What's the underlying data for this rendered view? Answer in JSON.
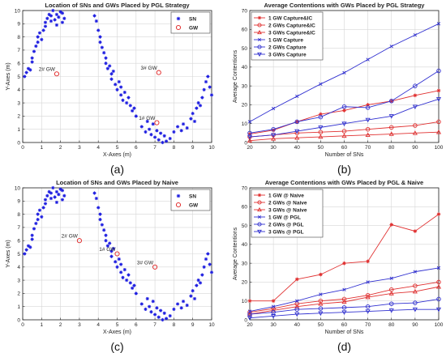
{
  "chart_data": [
    {
      "type": "scatter",
      "title": "Location of SNs and GWs Placed by PGL Strategy",
      "xlabel": "X-Axes (m)",
      "ylabel": "Y-Axes (m)",
      "xlim": [
        0,
        10
      ],
      "ylim": [
        0,
        10
      ],
      "xticks": [
        "0",
        "1",
        "2",
        "3",
        "4",
        "5",
        "6",
        "7",
        "8",
        "9",
        "10"
      ],
      "yticks": [
        "0",
        "1",
        "2",
        "3",
        "4",
        "5",
        "6",
        "7",
        "8",
        "9",
        "10"
      ],
      "grid": true,
      "legend": "top-right",
      "caption": "(a)",
      "series": [
        {
          "name": "SN",
          "marker": "star",
          "color": "#1f1fe0",
          "x": [
            0.1,
            0.2,
            0.3,
            0.4,
            0.5,
            0.5,
            0.6,
            0.7,
            0.8,
            0.8,
            0.9,
            1.0,
            1.1,
            1.2,
            1.2,
            1.3,
            1.4,
            1.5,
            1.5,
            1.6,
            1.7,
            1.8,
            1.8,
            1.9,
            2.0,
            2.1,
            2.1,
            2.2,
            3.8,
            3.9,
            4.0,
            4.1,
            4.1,
            4.2,
            4.3,
            4.4,
            4.4,
            4.5,
            4.6,
            4.7,
            4.7,
            4.8,
            4.9,
            5.0,
            5.1,
            5.2,
            5.2,
            5.3,
            5.4,
            5.5,
            5.6,
            5.7,
            5.8,
            5.9,
            6.0,
            6.3,
            6.5,
            6.6,
            6.7,
            6.8,
            6.9,
            7.0,
            7.1,
            7.2,
            7.3,
            7.4,
            7.5,
            7.6,
            7.8,
            8.0,
            8.2,
            8.4,
            8.5,
            8.7,
            8.9,
            9.0,
            9.1,
            9.2,
            9.3,
            9.4,
            9.5,
            9.6,
            9.7,
            9.8,
            9.9,
            10.0
          ],
          "y": [
            5.0,
            5.3,
            5.6,
            5.5,
            6.1,
            6.4,
            6.9,
            7.3,
            7.6,
            8.0,
            8.3,
            7.8,
            8.5,
            8.8,
            9.1,
            9.4,
            9.7,
            9.2,
            9.6,
            10.0,
            9.3,
            9.7,
            8.9,
            9.5,
            9.9,
            9.1,
            9.8,
            9.4,
            9.6,
            9.2,
            8.5,
            8.0,
            7.6,
            7.2,
            6.8,
            6.4,
            6.0,
            5.6,
            5.8,
            5.2,
            4.8,
            5.4,
            4.4,
            4.0,
            4.6,
            3.6,
            4.2,
            3.2,
            3.8,
            3.0,
            3.4,
            2.8,
            2.4,
            2.6,
            2.0,
            1.2,
            0.8,
            1.6,
            1.0,
            0.6,
            1.4,
            0.4,
            0.9,
            0.2,
            0.7,
            0.0,
            0.5,
            0.1,
            0.3,
            0.8,
            1.2,
            0.9,
            1.4,
            1.1,
            1.8,
            2.2,
            1.6,
            2.6,
            3.0,
            2.8,
            3.4,
            4.0,
            4.6,
            5.0,
            4.2,
            3.6
          ]
        },
        {
          "name": "GW",
          "marker": "circle",
          "color": "#e02020",
          "x": [
            1.8,
            7.2,
            7.1
          ],
          "y": [
            5.2,
            5.3,
            1.5
          ]
        }
      ],
      "annotations": [
        {
          "text": "2# GW",
          "x": 1.8,
          "y": 5.2
        },
        {
          "text": "3# GW",
          "x": 7.2,
          "y": 5.3
        },
        {
          "text": "1# GW",
          "x": 7.1,
          "y": 1.5
        }
      ]
    },
    {
      "type": "line",
      "title": "Average Contentions with GWs Placed by PGL Strategy",
      "xlabel": "Number of SNs",
      "ylabel": "Average Contentions",
      "xlim": [
        20,
        100
      ],
      "ylim": [
        0,
        70
      ],
      "x": [
        20,
        30,
        40,
        50,
        60,
        70,
        80,
        90,
        100
      ],
      "xticks": [
        "20",
        "30",
        "40",
        "50",
        "60",
        "70",
        "80",
        "90",
        "100"
      ],
      "yticks": [
        "0",
        "10",
        "20",
        "30",
        "40",
        "50",
        "60",
        "70"
      ],
      "grid": true,
      "legend": "top-left",
      "caption": "(b)",
      "series": [
        {
          "name": "1 GW Capture&IC",
          "color": "#e03030",
          "marker": "star",
          "values": [
            4.5,
            6.5,
            11,
            15,
            17,
            20,
            22,
            25,
            27.5
          ]
        },
        {
          "name": "2 GWs Capture&IC",
          "color": "#e03030",
          "marker": "circle",
          "values": [
            3,
            4,
            5,
            5.5,
            6,
            7,
            8,
            9,
            11
          ]
        },
        {
          "name": "3 GWs Capture&IC",
          "color": "#e03030",
          "marker": "triangle-up",
          "values": [
            1,
            2,
            2.5,
            3,
            3.5,
            4,
            4.5,
            5,
            5.5
          ]
        },
        {
          "name": "1 GW Capture",
          "color": "#3030d0",
          "marker": "x",
          "values": [
            11,
            18,
            24.5,
            31,
            37,
            44,
            51,
            57,
            63
          ]
        },
        {
          "name": "2 GWs Capture",
          "color": "#3030d0",
          "marker": "circle",
          "values": [
            5,
            7,
            11,
            13.5,
            19,
            18.5,
            22,
            30,
            38
          ]
        },
        {
          "name": "3 GWs Capture",
          "color": "#3030d0",
          "marker": "triangle-down",
          "values": [
            3,
            4,
            6,
            8,
            10,
            12,
            14,
            19,
            23
          ]
        }
      ]
    },
    {
      "type": "scatter",
      "title": "Location of SNs and GWs Placed by Naive",
      "xlabel": "X-Axes (m)",
      "ylabel": "Y-Axes (m)",
      "xlim": [
        0,
        10
      ],
      "ylim": [
        0,
        10
      ],
      "xticks": [
        "0",
        "1",
        "2",
        "3",
        "4",
        "5",
        "6",
        "7",
        "8",
        "9",
        "10"
      ],
      "yticks": [
        "0",
        "1",
        "2",
        "3",
        "4",
        "5",
        "6",
        "7",
        "8",
        "9",
        "10"
      ],
      "grid": true,
      "legend": "top-right",
      "caption": "(c)",
      "series": [
        {
          "name": "SN",
          "marker": "star",
          "color": "#1f1fe0",
          "x": [
            0.1,
            0.2,
            0.3,
            0.4,
            0.5,
            0.5,
            0.6,
            0.7,
            0.8,
            0.8,
            0.9,
            1.0,
            1.1,
            1.2,
            1.2,
            1.3,
            1.4,
            1.5,
            1.5,
            1.6,
            1.7,
            1.8,
            1.8,
            1.9,
            2.0,
            2.1,
            2.1,
            2.2,
            3.8,
            3.9,
            4.0,
            4.1,
            4.1,
            4.2,
            4.3,
            4.4,
            4.4,
            4.5,
            4.6,
            4.7,
            4.7,
            4.8,
            4.9,
            5.0,
            5.1,
            5.2,
            5.2,
            5.3,
            5.4,
            5.5,
            5.6,
            5.7,
            5.8,
            5.9,
            6.0,
            6.3,
            6.5,
            6.6,
            6.7,
            6.8,
            6.9,
            7.0,
            7.1,
            7.2,
            7.3,
            7.4,
            7.5,
            7.6,
            7.8,
            8.0,
            8.2,
            8.4,
            8.5,
            8.7,
            8.9,
            9.0,
            9.1,
            9.2,
            9.3,
            9.4,
            9.5,
            9.6,
            9.7,
            9.8,
            9.9,
            10.0
          ],
          "y": [
            5.0,
            5.3,
            5.6,
            5.5,
            6.1,
            6.4,
            6.9,
            7.3,
            7.6,
            8.0,
            8.3,
            7.8,
            8.5,
            8.8,
            9.1,
            9.4,
            9.7,
            9.2,
            9.6,
            10.0,
            9.3,
            9.7,
            8.9,
            9.5,
            9.9,
            9.1,
            9.8,
            9.4,
            9.6,
            9.2,
            8.5,
            8.0,
            7.6,
            7.2,
            6.8,
            6.4,
            6.0,
            5.6,
            5.8,
            5.2,
            4.8,
            5.4,
            4.4,
            4.0,
            4.6,
            3.6,
            4.2,
            3.2,
            3.8,
            3.0,
            3.4,
            2.8,
            2.4,
            2.6,
            2.0,
            1.2,
            0.8,
            1.6,
            1.0,
            0.6,
            1.4,
            0.4,
            0.9,
            0.2,
            0.7,
            0.0,
            0.5,
            0.1,
            0.3,
            0.8,
            1.2,
            0.9,
            1.4,
            1.1,
            1.8,
            2.2,
            1.6,
            2.6,
            3.0,
            2.8,
            3.4,
            4.0,
            4.6,
            5.0,
            4.2,
            3.6
          ]
        },
        {
          "name": "GW",
          "marker": "circle",
          "color": "#e02020",
          "x": [
            3.0,
            7.0,
            5.0
          ],
          "y": [
            6.0,
            4.0,
            5.0
          ]
        }
      ],
      "annotations": [
        {
          "text": "2# GW",
          "x": 3.0,
          "y": 6.0
        },
        {
          "text": "3# GW",
          "x": 7.0,
          "y": 4.0
        },
        {
          "text": "1# GW",
          "x": 5.0,
          "y": 5.0
        }
      ]
    },
    {
      "type": "line",
      "title": "Average Contentions with GWs Placed by PGL & Naive",
      "xlabel": "Number of SNs",
      "ylabel": "Average Contentions",
      "xlim": [
        20,
        100
      ],
      "ylim": [
        0,
        70
      ],
      "x": [
        20,
        30,
        40,
        50,
        60,
        70,
        80,
        90,
        100
      ],
      "xticks": [
        "20",
        "30",
        "40",
        "50",
        "60",
        "70",
        "80",
        "90",
        "100"
      ],
      "yticks": [
        "0",
        "10",
        "20",
        "30",
        "40",
        "50",
        "60",
        "70"
      ],
      "grid": true,
      "legend": "top-left",
      "caption": "(d)",
      "series": [
        {
          "name": "1 GW @ Naive",
          "color": "#e03030",
          "marker": "star",
          "values": [
            10,
            10,
            21.5,
            24,
            30,
            31,
            50.5,
            47,
            56
          ]
        },
        {
          "name": "2 GWs @ Naive",
          "color": "#e03030",
          "marker": "circle",
          "values": [
            4,
            6,
            8.5,
            10,
            11,
            13,
            16,
            18,
            20
          ]
        },
        {
          "name": "3 GWs @ Naive",
          "color": "#e03030",
          "marker": "triangle-up",
          "values": [
            3,
            5,
            7,
            8.5,
            9.5,
            12,
            14,
            15,
            17.5
          ]
        },
        {
          "name": "1 GW @ PGL",
          "color": "#3030d0",
          "marker": "x",
          "values": [
            4.5,
            7,
            10,
            13.5,
            16,
            20,
            22,
            25.5,
            27.5
          ]
        },
        {
          "name": "2 GWs @ PGL",
          "color": "#3030d0",
          "marker": "circle",
          "values": [
            3,
            4,
            5.5,
            6,
            6.5,
            7,
            8.5,
            9,
            11
          ]
        },
        {
          "name": "3 GWs @ PGL",
          "color": "#3030d0",
          "marker": "triangle-down",
          "values": [
            1,
            2,
            3,
            3.5,
            4,
            4.5,
            5,
            5.5,
            5.5
          ]
        }
      ]
    }
  ]
}
